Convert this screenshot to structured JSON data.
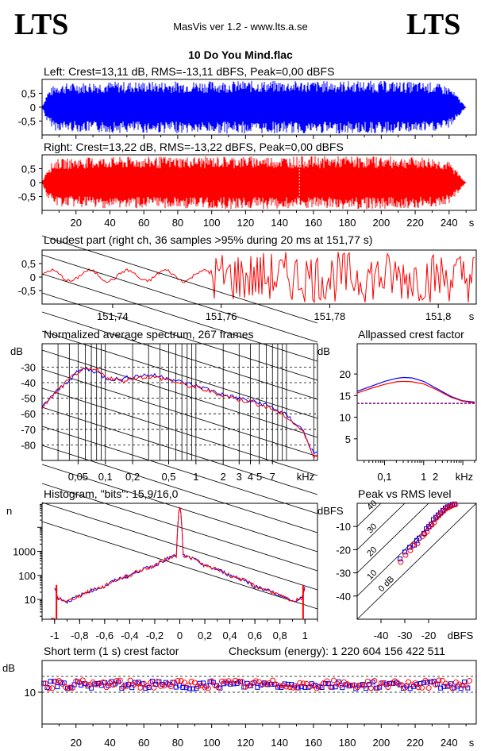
{
  "header": {
    "logo_left": "LTS",
    "logo_right": "LTS",
    "app_title": "MasVis ver 1.2 - www.lts.a.se",
    "file_title": "10 Do You Mind.flac"
  },
  "colors": {
    "left": "#0000ff",
    "right": "#ff0000",
    "axis": "#000000",
    "grid": "#000000"
  },
  "panels": {
    "left": {
      "title": "Left: Crest=13,11 dB, RMS=-13,11 dBFS, Peak=0,00 dBFS"
    },
    "right": {
      "title": "Right: Crest=13,22 dB, RMS=-13,22 dBFS, Peak=0,00 dBFS"
    },
    "loudest": {
      "title": "Loudest part (right ch, 36 samples >95% during 20 ms at 151,77 s)"
    },
    "spectrum": {
      "title": "Normalized average spectrum, 267 frames"
    },
    "allpass": {
      "title": "Allpassed crest factor"
    },
    "histogram": {
      "title": "Histogram, \"bits\": 15,9/16,0"
    },
    "peakrms": {
      "title": "Peak vs RMS level"
    },
    "shortcrest": {
      "title": "Short term (1 s) crest factor",
      "checksum": "Checksum (energy):  1 220 604 156 422 511"
    }
  },
  "chart_data": [
    {
      "id": "left-waveform",
      "type": "area",
      "title": "Left: Crest=13,11 dB, RMS=-13,11 dBFS, Peak=0,00 dBFS",
      "xlabel": "s",
      "xlim": [
        0,
        256
      ],
      "ylim": [
        -1,
        1
      ],
      "x_ticks": [
        20,
        40,
        60,
        80,
        100,
        120,
        140,
        160,
        180,
        200,
        220,
        240
      ],
      "y_ticks": [
        "0,5",
        "0",
        "-0,5"
      ],
      "envelope": {
        "x": [
          0,
          3,
          8,
          30,
          120,
          200,
          230,
          240,
          245,
          250
        ],
        "peak": [
          0.0,
          0.55,
          0.85,
          0.92,
          0.95,
          0.95,
          0.9,
          0.75,
          0.4,
          0.0
        ]
      },
      "series": [
        {
          "name": "left",
          "color": "#0000ff"
        }
      ]
    },
    {
      "id": "right-waveform",
      "type": "area",
      "title": "Right: Crest=13,22 dB, RMS=-13,22 dBFS, Peak=0,00 dBFS",
      "xlabel": "s",
      "xlim": [
        0,
        256
      ],
      "ylim": [
        -1,
        1
      ],
      "x_ticks": [
        20,
        40,
        60,
        80,
        100,
        120,
        140,
        160,
        180,
        200,
        220,
        240
      ],
      "y_ticks": [
        "0,5",
        "0",
        "-0,5"
      ],
      "marker_x": 151.77,
      "envelope": {
        "x": [
          0,
          3,
          8,
          30,
          120,
          200,
          230,
          240,
          245,
          250
        ],
        "peak": [
          0.0,
          0.55,
          0.85,
          0.92,
          0.95,
          0.95,
          0.9,
          0.75,
          0.4,
          0.0
        ]
      },
      "series": [
        {
          "name": "right",
          "color": "#ff0000"
        }
      ]
    },
    {
      "id": "loudest-part",
      "type": "line",
      "title": "Loudest part (right ch, 36 samples >95% during 20 ms at 151,77 s)",
      "xlabel": "s",
      "xlim": [
        151.727,
        151.807
      ],
      "ylim": [
        -1,
        1
      ],
      "x_ticks": [
        151.74,
        151.76,
        151.78,
        151.8
      ],
      "x_tick_labels": [
        "151,74",
        "151,76",
        "151,78",
        "151,8"
      ],
      "y_ticks": [
        "0,5",
        "0",
        "-0,5"
      ],
      "series": [
        {
          "name": "right",
          "color": "#ff0000"
        }
      ]
    },
    {
      "id": "spectrum",
      "type": "line",
      "title": "Normalized average spectrum, 267 frames",
      "xlabel": "kHz",
      "ylabel": "dB",
      "xscale": "log",
      "xlim": [
        0.02,
        22
      ],
      "ylim": [
        -90,
        -15
      ],
      "x_tick_labels": [
        "0,05",
        "0,1",
        "0,2",
        "0,5",
        "1",
        "2",
        "3",
        "4",
        "5",
        "7"
      ],
      "x_ticks": [
        0.05,
        0.1,
        0.2,
        0.5,
        1,
        2,
        3,
        4,
        5,
        7
      ],
      "y_ticks": [
        -30,
        -40,
        -50,
        -60,
        -70,
        -80
      ],
      "series": [
        {
          "name": "left",
          "color": "#0000ff",
          "x": [
            0.02,
            0.025,
            0.03,
            0.04,
            0.05,
            0.06,
            0.08,
            0.1,
            0.15,
            0.2,
            0.3,
            0.5,
            0.7,
            1,
            1.5,
            2,
            3,
            4,
            5,
            7,
            10,
            15,
            20
          ],
          "y": [
            -56,
            -49,
            -45,
            -38,
            -33,
            -31,
            -33,
            -37,
            -38,
            -36,
            -35,
            -37,
            -40,
            -42,
            -45,
            -48,
            -50,
            -52,
            -53,
            -56,
            -61,
            -70,
            -86
          ]
        },
        {
          "name": "right",
          "color": "#ff0000",
          "x": [
            0.02,
            0.025,
            0.03,
            0.04,
            0.05,
            0.06,
            0.08,
            0.1,
            0.15,
            0.2,
            0.3,
            0.5,
            0.7,
            1,
            1.5,
            2,
            3,
            4,
            5,
            7,
            10,
            15,
            20
          ],
          "y": [
            -56,
            -50,
            -45,
            -38,
            -33,
            -32,
            -32,
            -36,
            -39,
            -37,
            -36,
            -38,
            -41,
            -43,
            -46,
            -48,
            -51,
            -52,
            -54,
            -57,
            -62,
            -71,
            -87
          ]
        }
      ]
    },
    {
      "id": "allpassed-crest",
      "type": "line",
      "title": "Allpassed crest factor",
      "xlabel": "kHz",
      "ylabel": "dB",
      "xscale": "log",
      "xlim": [
        0.02,
        22
      ],
      "ylim": [
        0,
        27
      ],
      "x_tick_labels": [
        "0,1",
        "1",
        "2"
      ],
      "x_ticks": [
        0.1,
        1,
        2
      ],
      "y_ticks": [
        5,
        10,
        15,
        20
      ],
      "reference_y": 13.2,
      "series": [
        {
          "name": "left",
          "color": "#0000ff",
          "x": [
            0.02,
            0.05,
            0.1,
            0.2,
            0.3,
            0.5,
            1,
            2,
            5,
            10,
            20
          ],
          "y": [
            16,
            17.3,
            18.3,
            19,
            19.2,
            19.1,
            18.3,
            16.8,
            14.8,
            13.8,
            13.5
          ]
        },
        {
          "name": "right",
          "color": "#ff0000",
          "x": [
            0.02,
            0.05,
            0.1,
            0.2,
            0.3,
            0.5,
            1,
            2,
            5,
            10,
            20
          ],
          "y": [
            15.6,
            16.8,
            17.6,
            18.2,
            18.3,
            18.2,
            17.7,
            16.5,
            14.6,
            13.7,
            13.3
          ]
        }
      ]
    },
    {
      "id": "histogram",
      "type": "line",
      "title": "Histogram, \"bits\": 15,9/16,0",
      "ylabel": "n",
      "yscale": "log",
      "xlim": [
        -1.1,
        1.1
      ],
      "ylim": [
        1.5,
        100000
      ],
      "x_ticks": [
        -1,
        -0.8,
        -0.6,
        -0.4,
        -0.2,
        0,
        0.2,
        0.4,
        0.6,
        0.8,
        1
      ],
      "x_tick_labels": [
        "-1",
        "-0,8",
        "-0,6",
        "-0,4",
        "-0,2",
        "0",
        "0,2",
        "0,4",
        "0,6",
        "0,8",
        "1"
      ],
      "y_ticks": [
        10,
        100,
        1000
      ],
      "y_tick_labels": [
        "10",
        "100",
        "1000"
      ],
      "series": [
        {
          "name": "left",
          "color": "#0000ff",
          "x": [
            -1,
            -0.98,
            -0.9,
            -0.8,
            -0.6,
            -0.4,
            -0.2,
            -0.02,
            0,
            0.02,
            0.2,
            0.4,
            0.6,
            0.8,
            0.9,
            0.98,
            1
          ],
          "y": [
            30,
            12,
            8,
            14,
            35,
            100,
            250,
            700,
            70000,
            700,
            250,
            100,
            35,
            14,
            8,
            12,
            30
          ]
        },
        {
          "name": "right",
          "color": "#ff0000",
          "x": [
            -1,
            -0.98,
            -0.9,
            -0.8,
            -0.6,
            -0.4,
            -0.2,
            -0.02,
            0,
            0.02,
            0.2,
            0.4,
            0.6,
            0.8,
            0.9,
            0.98,
            1
          ],
          "y": [
            30,
            12,
            8,
            14,
            35,
            100,
            250,
            700,
            70000,
            700,
            250,
            100,
            35,
            14,
            8,
            12,
            30
          ]
        }
      ]
    },
    {
      "id": "peak-vs-rms",
      "type": "scatter",
      "title": "Peak vs RMS level",
      "xlabel": "dBFS",
      "ylabel": "dBFS",
      "xlim": [
        -50,
        0
      ],
      "ylim": [
        -50,
        0
      ],
      "x_ticks": [
        -40,
        -30,
        -20
      ],
      "y_ticks": [
        -10,
        -20,
        -30,
        -40
      ],
      "crest_lines_db": [
        0,
        10,
        20,
        30,
        40
      ],
      "crest_line_labels": [
        "0 dB",
        "10",
        "20",
        "30",
        "40"
      ],
      "series": [
        {
          "name": "left",
          "color": "#0000ff",
          "marker": "square",
          "x": [
            -32,
            -30,
            -28,
            -26,
            -25,
            -24,
            -22,
            -21,
            -20,
            -19,
            -18,
            -17,
            -16,
            -15,
            -14,
            -13,
            -12,
            -11,
            -10,
            -9
          ],
          "y": [
            -24,
            -21,
            -19,
            -18,
            -16,
            -15,
            -13,
            -11,
            -10,
            -9,
            -7,
            -6,
            -5,
            -4,
            -3,
            -2,
            -1.5,
            -1,
            -0.5,
            -0.3
          ]
        },
        {
          "name": "right",
          "color": "#ff0000",
          "marker": "circle",
          "x": [
            -32,
            -30,
            -28,
            -27,
            -25,
            -23,
            -22,
            -21,
            -20,
            -19,
            -18,
            -17,
            -16,
            -15,
            -14,
            -13,
            -12,
            -11,
            -10,
            -9
          ],
          "y": [
            -25,
            -22,
            -20,
            -18,
            -17,
            -14,
            -13,
            -12,
            -10,
            -9,
            -8,
            -6,
            -5,
            -4,
            -3,
            -2,
            -1.5,
            -1,
            -0.5,
            -0.2
          ]
        }
      ]
    },
    {
      "id": "short-term-crest",
      "type": "scatter",
      "title": "Short term (1 s) crest factor",
      "xlabel": "s",
      "ylabel": "dB",
      "xlim": [
        0,
        256
      ],
      "ylim": [
        0,
        20
      ],
      "x_ticks": [
        20,
        40,
        60,
        80,
        100,
        120,
        140,
        160,
        180,
        200,
        220,
        240
      ],
      "y_ticks": [
        10
      ],
      "reference_lines": [
        10,
        15
      ],
      "series": [
        {
          "name": "left",
          "color": "#0000ff",
          "marker": "square",
          "mean": 12.3,
          "spread": 1.2
        },
        {
          "name": "right",
          "color": "#ff0000",
          "marker": "circle",
          "mean": 12.5,
          "spread": 1.3
        }
      ]
    }
  ]
}
